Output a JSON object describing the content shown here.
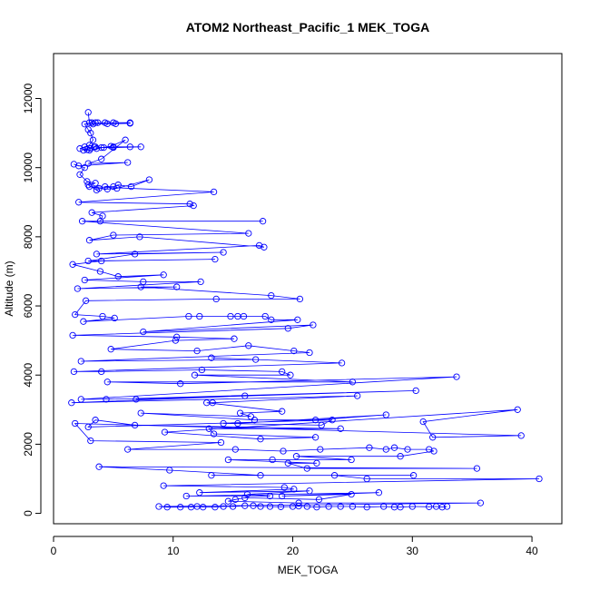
{
  "chart_data": {
    "type": "scatter",
    "title": "ATOM2 Northeast_Pacific_1 MEK_TOGA",
    "xlabel": "MEK_TOGA",
    "ylabel": "Altitude (m)",
    "xlim": [
      0,
      42.5
    ],
    "ylim": [
      -300,
      13300
    ],
    "xticks": [
      0,
      10,
      20,
      30,
      40
    ],
    "yticks": [
      0,
      2000,
      4000,
      6000,
      8000,
      10000,
      12000
    ],
    "color": "#0000ff",
    "grid": false,
    "legend": "none",
    "series": [
      {
        "mode": "lines+markers",
        "points": [
          [
            2.9,
            11600
          ],
          [
            3.0,
            11300
          ],
          [
            3.2,
            11300
          ],
          [
            3.5,
            11300
          ],
          [
            3.7,
            11300
          ],
          [
            4.3,
            11300
          ],
          [
            5.0,
            11300
          ],
          [
            6.4,
            11300
          ],
          [
            6.4,
            11280
          ],
          [
            5.2,
            11270
          ],
          [
            4.5,
            11270
          ],
          [
            3.3,
            11260
          ],
          [
            2.6,
            11260
          ],
          [
            2.9,
            11100
          ],
          [
            3.1,
            11000
          ],
          [
            3.3,
            10800
          ],
          [
            3.0,
            10650
          ],
          [
            2.6,
            10600
          ],
          [
            2.2,
            10550
          ],
          [
            2.8,
            10520
          ],
          [
            3.5,
            10600
          ],
          [
            4.2,
            10580
          ],
          [
            5.0,
            10600
          ],
          [
            6.4,
            10600
          ],
          [
            7.3,
            10600
          ],
          [
            5.0,
            10580
          ],
          [
            4.0,
            10580
          ],
          [
            3.4,
            10600
          ],
          [
            3.1,
            10550
          ],
          [
            2.5,
            10500
          ],
          [
            3.0,
            10500
          ],
          [
            3.6,
            10550
          ],
          [
            4.8,
            10620
          ],
          [
            6.0,
            10800
          ],
          [
            4.0,
            10250
          ],
          [
            2.9,
            10120
          ],
          [
            6.2,
            10150
          ],
          [
            2.1,
            10050
          ],
          [
            1.7,
            10100
          ],
          [
            2.6,
            10000
          ],
          [
            2.2,
            9800
          ],
          [
            2.8,
            9600
          ],
          [
            3.5,
            9550
          ],
          [
            2.9,
            9500
          ],
          [
            3.6,
            9350
          ],
          [
            4.3,
            9450
          ],
          [
            5.0,
            9450
          ],
          [
            5.4,
            9500
          ],
          [
            6.5,
            9450
          ],
          [
            8.0,
            9650
          ],
          [
            5.3,
            9400
          ],
          [
            4.5,
            9380
          ],
          [
            3.8,
            9400
          ],
          [
            3.0,
            9450
          ],
          [
            13.4,
            9300
          ],
          [
            2.1,
            9000
          ],
          [
            11.4,
            8950
          ],
          [
            11.7,
            8900
          ],
          [
            3.2,
            8700
          ],
          [
            4.1,
            8600
          ],
          [
            3.9,
            8450
          ],
          [
            17.5,
            8450
          ],
          [
            2.4,
            8450
          ],
          [
            16.3,
            8100
          ],
          [
            5.0,
            8050
          ],
          [
            3.0,
            7900
          ],
          [
            7.2,
            8000
          ],
          [
            17.6,
            7700
          ],
          [
            17.2,
            7750
          ],
          [
            3.6,
            7500
          ],
          [
            14.2,
            7550
          ],
          [
            6.8,
            7500
          ],
          [
            2.9,
            7300
          ],
          [
            13.5,
            7350
          ],
          [
            4.0,
            7300
          ],
          [
            1.6,
            7200
          ],
          [
            3.9,
            7000
          ],
          [
            5.4,
            6850
          ],
          [
            9.2,
            6900
          ],
          [
            2.6,
            6750
          ],
          [
            7.5,
            6700
          ],
          [
            12.3,
            6700
          ],
          [
            2.0,
            6500
          ],
          [
            10.3,
            6550
          ],
          [
            7.3,
            6550
          ],
          [
            18.2,
            6300
          ],
          [
            20.6,
            6200
          ],
          [
            13.6,
            6200
          ],
          [
            2.7,
            6150
          ],
          [
            1.8,
            5750
          ],
          [
            4.1,
            5700
          ],
          [
            5.1,
            5650
          ],
          [
            2.5,
            5550
          ],
          [
            11.3,
            5700
          ],
          [
            12.2,
            5700
          ],
          [
            14.8,
            5700
          ],
          [
            15.4,
            5700
          ],
          [
            15.9,
            5700
          ],
          [
            17.7,
            5700
          ],
          [
            18.2,
            5600
          ],
          [
            20.4,
            5600
          ],
          [
            7.5,
            5250
          ],
          [
            21.7,
            5450
          ],
          [
            19.6,
            5350
          ],
          [
            1.6,
            5150
          ],
          [
            10.3,
            5100
          ],
          [
            15.1,
            5050
          ],
          [
            10.2,
            5000
          ],
          [
            4.8,
            4750
          ],
          [
            12.0,
            4700
          ],
          [
            16.3,
            4850
          ],
          [
            20.1,
            4700
          ],
          [
            21.4,
            4650
          ],
          [
            2.3,
            4400
          ],
          [
            16.9,
            4450
          ],
          [
            13.2,
            4500
          ],
          [
            24.1,
            4350
          ],
          [
            1.7,
            4100
          ],
          [
            4.0,
            4100
          ],
          [
            12.4,
            4150
          ],
          [
            19.1,
            4100
          ],
          [
            19.8,
            4000
          ],
          [
            11.8,
            4000
          ],
          [
            25.0,
            3800
          ],
          [
            4.5,
            3800
          ],
          [
            10.6,
            3750
          ],
          [
            33.7,
            3950
          ],
          [
            2.3,
            3300
          ],
          [
            4.4,
            3300
          ],
          [
            30.3,
            3550
          ],
          [
            6.9,
            3300
          ],
          [
            16.0,
            3400
          ],
          [
            1.5,
            3200
          ],
          [
            25.4,
            3400
          ],
          [
            13.3,
            3200
          ],
          [
            12.8,
            3200
          ],
          [
            19.1,
            2950
          ],
          [
            15.6,
            2900
          ],
          [
            16.5,
            2800
          ],
          [
            7.3,
            2900
          ],
          [
            16.8,
            2700
          ],
          [
            21.9,
            2700
          ],
          [
            27.8,
            2850
          ],
          [
            15.4,
            2600
          ],
          [
            14.2,
            2600
          ],
          [
            22.4,
            2550
          ],
          [
            23.3,
            2700
          ],
          [
            2.9,
            2500
          ],
          [
            3.5,
            2700
          ],
          [
            6.8,
            2550
          ],
          [
            24.0,
            2450
          ],
          [
            13.0,
            2450
          ],
          [
            13.4,
            2300
          ],
          [
            21.9,
            2200
          ],
          [
            17.3,
            2150
          ],
          [
            9.3,
            2350
          ],
          [
            38.8,
            3000
          ],
          [
            30.9,
            2650
          ],
          [
            31.7,
            2200
          ],
          [
            39.1,
            2250
          ],
          [
            1.8,
            2600
          ],
          [
            3.1,
            2100
          ],
          [
            14.0,
            2050
          ],
          [
            6.2,
            1850
          ],
          [
            15.2,
            1850
          ],
          [
            19.2,
            1800
          ],
          [
            22.3,
            1850
          ],
          [
            26.4,
            1900
          ],
          [
            27.8,
            1850
          ],
          [
            28.5,
            1900
          ],
          [
            29.6,
            1850
          ],
          [
            31.4,
            1850
          ],
          [
            31.8,
            1800
          ],
          [
            29.0,
            1650
          ],
          [
            20.3,
            1650
          ],
          [
            24.9,
            1550
          ],
          [
            18.3,
            1550
          ],
          [
            14.6,
            1550
          ],
          [
            22.0,
            1450
          ],
          [
            19.6,
            1450
          ],
          [
            21.2,
            1300
          ],
          [
            35.4,
            1300
          ],
          [
            3.8,
            1350
          ],
          [
            9.7,
            1250
          ],
          [
            17.3,
            1100
          ],
          [
            13.2,
            1100
          ],
          [
            30.1,
            1100
          ],
          [
            23.5,
            1100
          ],
          [
            26.2,
            1000
          ],
          [
            40.6,
            1000
          ],
          [
            9.2,
            800
          ],
          [
            19.3,
            750
          ],
          [
            20.1,
            700
          ],
          [
            12.2,
            600
          ],
          [
            21.4,
            650
          ],
          [
            16.2,
            550
          ],
          [
            18.1,
            500
          ],
          [
            11.1,
            500
          ],
          [
            27.2,
            600
          ],
          [
            19.1,
            500
          ],
          [
            24.9,
            550
          ],
          [
            22.2,
            400
          ],
          [
            16.0,
            450
          ],
          [
            15.2,
            400
          ],
          [
            14.6,
            350
          ],
          [
            20.5,
            300
          ],
          [
            35.7,
            300
          ],
          [
            8.8,
            200
          ],
          [
            9.5,
            180
          ],
          [
            10.6,
            180
          ],
          [
            11.5,
            180
          ],
          [
            12.0,
            200
          ],
          [
            12.5,
            180
          ],
          [
            13.5,
            180
          ],
          [
            14.2,
            200
          ],
          [
            15.0,
            200
          ],
          [
            16.0,
            220
          ],
          [
            16.7,
            220
          ],
          [
            17.3,
            200
          ],
          [
            18.1,
            200
          ],
          [
            19.0,
            190
          ],
          [
            20.0,
            200
          ],
          [
            20.5,
            210
          ],
          [
            21.2,
            200
          ],
          [
            22.0,
            180
          ],
          [
            23.0,
            200
          ],
          [
            24.0,
            200
          ],
          [
            25.0,
            200
          ],
          [
            26.2,
            180
          ],
          [
            27.6,
            200
          ],
          [
            28.5,
            180
          ],
          [
            29.0,
            180
          ],
          [
            30.0,
            200
          ],
          [
            31.4,
            190
          ],
          [
            32.0,
            200
          ],
          [
            32.5,
            180
          ],
          [
            32.9,
            200
          ]
        ]
      }
    ]
  }
}
